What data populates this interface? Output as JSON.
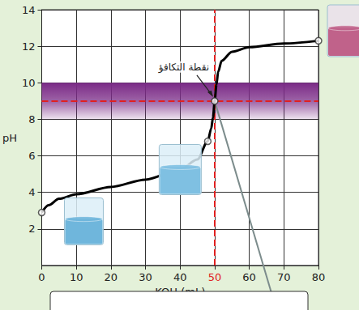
{
  "chart_data": {
    "type": "line",
    "x_label": "KOH (mL)",
    "y_label": "pH",
    "x": [
      0,
      2,
      5,
      10,
      20,
      30,
      40,
      45,
      48,
      49,
      49.5,
      50,
      50.5,
      51,
      52,
      55,
      60,
      70,
      80
    ],
    "values": [
      2.9,
      3.3,
      3.65,
      3.9,
      4.3,
      4.7,
      5.25,
      5.8,
      6.8,
      7.5,
      8.1,
      9,
      9.9,
      10.6,
      11.2,
      11.7,
      11.95,
      12.15,
      12.3
    ],
    "color": "#000000",
    "marker": "circle",
    "marked_points": [
      {
        "x": 0,
        "y": 2.9
      },
      {
        "x": 48,
        "y": 6.8
      },
      {
        "x": 50,
        "y": 9
      },
      {
        "x": 80,
        "y": 12.3
      }
    ],
    "xlim": [
      0,
      80
    ],
    "xticks": [
      0,
      10,
      20,
      30,
      40,
      50,
      60,
      70,
      80
    ],
    "ylim": [
      0,
      14
    ],
    "yticks": [
      2,
      4,
      6,
      8,
      10,
      12,
      14
    ],
    "grid": true,
    "equivalence_point": {
      "x": 50,
      "y": 9,
      "label": "نقطة التكافؤ",
      "color": "#e02020"
    },
    "indicator_band": {
      "from": 8,
      "to": 10,
      "color": "#7a2a86"
    }
  }
}
